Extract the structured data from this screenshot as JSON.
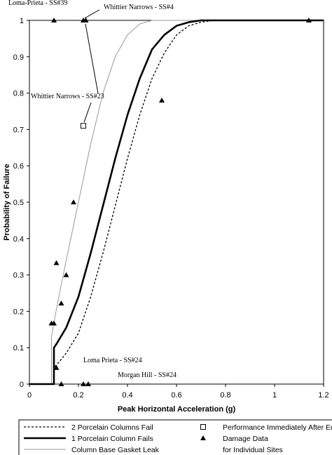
{
  "chart_data": {
    "type": "line",
    "title": "",
    "xlabel": "Peak Horizontal Acceleration (g)",
    "ylabel": "Probability of Failure",
    "xlim": [
      0,
      1.2
    ],
    "ylim": [
      0,
      1
    ],
    "x_ticks": [
      "0",
      "0.2",
      "0.4",
      "0.6",
      "0.8",
      "1",
      "1.2"
    ],
    "y_ticks": [
      "0",
      "0.1",
      "0.2",
      "0.3",
      "0.4",
      "0.5",
      "0.6",
      "0.7",
      "0.8",
      "0.9",
      "1"
    ],
    "grid": false,
    "series": [
      {
        "name": "2 Porcelain Columns Fail",
        "style": "dotted",
        "color": "#000000",
        "x": [
          0.0,
          0.1,
          0.1,
          0.12,
          0.15,
          0.2,
          0.25,
          0.3,
          0.35,
          0.4,
          0.45,
          0.5,
          0.55,
          0.6,
          0.65,
          0.7,
          0.75,
          0.8,
          0.85,
          0.9,
          1.2
        ],
        "y": [
          0.0,
          0.0,
          0.045,
          0.06,
          0.085,
          0.14,
          0.24,
          0.36,
          0.49,
          0.62,
          0.74,
          0.84,
          0.91,
          0.96,
          0.985,
          0.995,
          1.0,
          1.0,
          1.0,
          1.0,
          1.0
        ]
      },
      {
        "name": "1 Porcelain Column Fails",
        "style": "solid-thick",
        "color": "#000000",
        "x": [
          0.0,
          0.1,
          0.1,
          0.11,
          0.15,
          0.2,
          0.25,
          0.3,
          0.35,
          0.4,
          0.45,
          0.5,
          0.55,
          0.6,
          0.65,
          0.7,
          0.75,
          0.8,
          1.2
        ],
        "y": [
          0.0,
          0.0,
          0.1,
          0.11,
          0.155,
          0.24,
          0.36,
          0.49,
          0.62,
          0.74,
          0.84,
          0.92,
          0.96,
          0.985,
          0.995,
          1.0,
          1.0,
          1.0,
          1.0
        ]
      },
      {
        "name": "Column Base Gasket Leak",
        "style": "solid-thin",
        "color": "#999999",
        "x": [
          0.0,
          0.09,
          0.09,
          0.1,
          0.12,
          0.15,
          0.2,
          0.25,
          0.3,
          0.35,
          0.4,
          0.45,
          0.5,
          0.55,
          0.6,
          1.2
        ],
        "y": [
          0.0,
          0.0,
          0.13,
          0.17,
          0.24,
          0.34,
          0.5,
          0.66,
          0.8,
          0.9,
          0.96,
          0.99,
          1.0,
          1.0,
          1.0,
          1.0
        ]
      }
    ],
    "damage_data": {
      "name": "Damage Data",
      "marker": "filled-triangle",
      "points": [
        {
          "x": 0.1,
          "y": 1.0
        },
        {
          "x": 0.22,
          "y": 1.0
        },
        {
          "x": 0.23,
          "y": 1.0
        },
        {
          "x": 1.14,
          "y": 1.0
        },
        {
          "x": 0.54,
          "y": 0.78
        },
        {
          "x": 0.18,
          "y": 0.5
        },
        {
          "x": 0.11,
          "y": 0.333
        },
        {
          "x": 0.15,
          "y": 0.3
        },
        {
          "x": 0.13,
          "y": 0.222
        },
        {
          "x": 0.09,
          "y": 0.167
        },
        {
          "x": 0.1,
          "y": 0.167
        },
        {
          "x": 0.11,
          "y": 0.045
        },
        {
          "x": 0.13,
          "y": 0.0
        },
        {
          "x": 0.22,
          "y": 0.0
        },
        {
          "x": 0.24,
          "y": 0.0
        }
      ]
    },
    "performance_data": {
      "name": "Performance Immediately After Eq",
      "marker": "open-square",
      "points": [
        {
          "x": 0.22,
          "y": 0.71
        }
      ]
    },
    "annotations": [
      {
        "text": "Loma-Prieta - SS#39",
        "ref_x": 0.1,
        "ref_y": 1.0,
        "arrow": false
      },
      {
        "text": "Whittier Narrows - SS#4",
        "ref_x": 0.22,
        "ref_y": 1.0,
        "arrow": true
      },
      {
        "text": "Whittier Narrows - SS#23",
        "ref_x": 0.22,
        "ref_y": 0.71,
        "arrow": true
      },
      {
        "text": "Loma Prieta - SS#24",
        "ref_x": 0.22,
        "ref_y": 0.0,
        "arrow": false
      },
      {
        "text": "Morgan Hill - SS#24",
        "ref_x": 0.24,
        "ref_y": 0.0,
        "arrow": false
      }
    ],
    "legend": {
      "placement": "bottom",
      "entries": [
        {
          "label": "2 Porcelain Columns Fail",
          "symbol": "dotted-line"
        },
        {
          "label": "Performance Immediately After Eq",
          "symbol": "open-square"
        },
        {
          "label": "1 Porcelain Column Fails",
          "symbol": "thick-line"
        },
        {
          "label": "Damage Data",
          "symbol": "filled-triangle"
        },
        {
          "label": "Column Base Gasket Leak",
          "symbol": "gray-line"
        },
        {
          "label": "for Individual Sites",
          "symbol": "none"
        }
      ]
    }
  }
}
